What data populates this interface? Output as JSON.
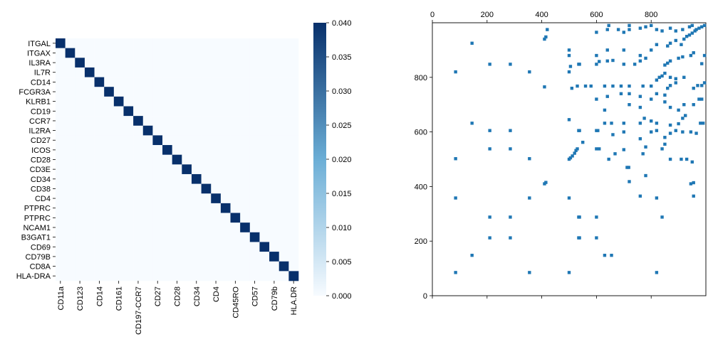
{
  "colors": {
    "heat_low": "#f7fbff",
    "heat_mid": "#6baed6",
    "heat_high": "#08306b",
    "spy_marker": "#1f77b4",
    "axis": "#000000"
  },
  "chart_data": [
    {
      "type": "heatmap",
      "title": "",
      "xlabel": "",
      "ylabel": "",
      "row_labels": [
        "ITGAL",
        "ITGAX",
        "IL3RA",
        "IL7R",
        "CD14",
        "FCGR3A",
        "KLRB1",
        "CD19",
        "CCR7",
        "IL2RA",
        "CD27",
        "ICOS",
        "CD28",
        "CD3E",
        "CD34",
        "CD38",
        "CD4",
        "PTPRC",
        "PTPRC",
        "NCAM1",
        "B3GAT1",
        "CD69",
        "CD79B",
        "CD8A",
        "HLA-DRA"
      ],
      "col_labels": [
        "CD11a",
        "",
        "CD123",
        "",
        "CD14",
        "",
        "CD161",
        "",
        "CD197-CCR7",
        "",
        "CD27",
        "",
        "CD28",
        "",
        "CD34",
        "",
        "CD4",
        "",
        "CD45RO",
        "",
        "CD57",
        "",
        "CD79b",
        "",
        "HLA.DR"
      ],
      "matrix_rule": "identity",
      "diagonal_value": 0.04,
      "off_diagonal_value": 0.0,
      "colorbar": {
        "vmin": 0.0,
        "vmax": 0.04,
        "ticks": [
          "0.000",
          "0.005",
          "0.010",
          "0.015",
          "0.020",
          "0.025",
          "0.030",
          "0.035",
          "0.040"
        ]
      }
    },
    {
      "type": "scatter",
      "title": "",
      "xlabel": "",
      "ylabel": "",
      "xlim": [
        0,
        1000
      ],
      "ylim": [
        1000,
        0
      ],
      "x_ticks": [
        "0",
        "200",
        "400",
        "600",
        "800"
      ],
      "y_ticks": [
        "0",
        "200",
        "400",
        "600",
        "800"
      ],
      "x_axis_position": "top",
      "points": [
        [
          85,
          85
        ],
        [
          355,
          85
        ],
        [
          500,
          85
        ],
        [
          820,
          85
        ],
        [
          145,
          148
        ],
        [
          630,
          148
        ],
        [
          655,
          148
        ],
        [
          210,
          212
        ],
        [
          285,
          212
        ],
        [
          535,
          212
        ],
        [
          538,
          212
        ],
        [
          600,
          212
        ],
        [
          210,
          288
        ],
        [
          285,
          288
        ],
        [
          535,
          288
        ],
        [
          538,
          288
        ],
        [
          600,
          288
        ],
        [
          840,
          288
        ],
        [
          85,
          358
        ],
        [
          355,
          358
        ],
        [
          500,
          358
        ],
        [
          760,
          365
        ],
        [
          820,
          358
        ],
        [
          955,
          365
        ],
        [
          410,
          410
        ],
        [
          415,
          415
        ],
        [
          945,
          410
        ],
        [
          955,
          414
        ],
        [
          720,
          418
        ],
        [
          780,
          440
        ],
        [
          950,
          490
        ],
        [
          712,
          470
        ],
        [
          718,
          470
        ],
        [
          85,
          502
        ],
        [
          355,
          502
        ],
        [
          500,
          500
        ],
        [
          505,
          505
        ],
        [
          512,
          512
        ],
        [
          520,
          522
        ],
        [
          525,
          532
        ],
        [
          530,
          538
        ],
        [
          210,
          538
        ],
        [
          285,
          538
        ],
        [
          600,
          538
        ],
        [
          610,
          538
        ],
        [
          645,
          500
        ],
        [
          668,
          520
        ],
        [
          700,
          535
        ],
        [
          770,
          520
        ],
        [
          780,
          545
        ],
        [
          840,
          538
        ],
        [
          850,
          555
        ],
        [
          870,
          500
        ],
        [
          910,
          500
        ],
        [
          930,
          500
        ],
        [
          210,
          605
        ],
        [
          285,
          605
        ],
        [
          535,
          605
        ],
        [
          538,
          605
        ],
        [
          600,
          605
        ],
        [
          605,
          605
        ],
        [
          550,
          562
        ],
        [
          660,
          590
        ],
        [
          700,
          600
        ],
        [
          760,
          575
        ],
        [
          800,
          600
        ],
        [
          820,
          605
        ],
        [
          850,
          580
        ],
        [
          870,
          595
        ],
        [
          890,
          605
        ],
        [
          915,
          600
        ],
        [
          945,
          600
        ],
        [
          965,
          595
        ],
        [
          980,
          632
        ],
        [
          990,
          632
        ],
        [
          145,
          632
        ],
        [
          500,
          645
        ],
        [
          630,
          632
        ],
        [
          655,
          632
        ],
        [
          700,
          632
        ],
        [
          760,
          632
        ],
        [
          775,
          650
        ],
        [
          800,
          640
        ],
        [
          820,
          632
        ],
        [
          870,
          625
        ],
        [
          900,
          630
        ],
        [
          915,
          650
        ],
        [
          925,
          660
        ],
        [
          630,
          680
        ],
        [
          720,
          700
        ],
        [
          760,
          690
        ],
        [
          800,
          720
        ],
        [
          850,
          710
        ],
        [
          870,
          690
        ],
        [
          900,
          680
        ],
        [
          920,
          700
        ],
        [
          955,
          700
        ],
        [
          975,
          720
        ],
        [
          985,
          720
        ],
        [
          600,
          720
        ],
        [
          640,
          730
        ],
        [
          690,
          740
        ],
        [
          720,
          740
        ],
        [
          760,
          730
        ],
        [
          820,
          740
        ],
        [
          850,
          735
        ],
        [
          860,
          760
        ],
        [
          870,
          770
        ],
        [
          890,
          780
        ],
        [
          955,
          760
        ],
        [
          970,
          770
        ],
        [
          985,
          770
        ],
        [
          995,
          780
        ],
        [
          410,
          765
        ],
        [
          510,
          760
        ],
        [
          530,
          768
        ],
        [
          560,
          768
        ],
        [
          580,
          768
        ],
        [
          630,
          768
        ],
        [
          660,
          768
        ],
        [
          690,
          768
        ],
        [
          720,
          768
        ],
        [
          770,
          768
        ],
        [
          800,
          768
        ],
        [
          820,
          790
        ],
        [
          830,
          800
        ],
        [
          840,
          805
        ],
        [
          850,
          815
        ],
        [
          870,
          800
        ],
        [
          890,
          795
        ],
        [
          920,
          800
        ],
        [
          85,
          820
        ],
        [
          355,
          820
        ],
        [
          500,
          820
        ],
        [
          505,
          840
        ],
        [
          535,
          848
        ],
        [
          538,
          848
        ],
        [
          600,
          848
        ],
        [
          610,
          858
        ],
        [
          640,
          860
        ],
        [
          660,
          862
        ],
        [
          700,
          848
        ],
        [
          740,
          848
        ],
        [
          760,
          860
        ],
        [
          780,
          870
        ],
        [
          850,
          845
        ],
        [
          860,
          852
        ],
        [
          870,
          860
        ],
        [
          900,
          870
        ],
        [
          915,
          875
        ],
        [
          945,
          880
        ],
        [
          955,
          890
        ],
        [
          985,
          850
        ],
        [
          995,
          880
        ],
        [
          210,
          848
        ],
        [
          285,
          848
        ],
        [
          500,
          880
        ],
        [
          500,
          900
        ],
        [
          600,
          880
        ],
        [
          640,
          900
        ],
        [
          700,
          900
        ],
        [
          760,
          880
        ],
        [
          800,
          900
        ],
        [
          820,
          920
        ],
        [
          860,
          915
        ],
        [
          870,
          925
        ],
        [
          890,
          935
        ],
        [
          910,
          920
        ],
        [
          920,
          940
        ],
        [
          930,
          950
        ],
        [
          940,
          955
        ],
        [
          950,
          962
        ],
        [
          960,
          970
        ],
        [
          975,
          980
        ],
        [
          985,
          985
        ],
        [
          995,
          990
        ],
        [
          145,
          925
        ],
        [
          410,
          940
        ],
        [
          415,
          948
        ],
        [
          420,
          975
        ],
        [
          600,
          965
        ],
        [
          640,
          975
        ],
        [
          645,
          990
        ],
        [
          680,
          975
        ],
        [
          700,
          965
        ],
        [
          720,
          975
        ],
        [
          720,
          990
        ],
        [
          760,
          980
        ],
        [
          780,
          985
        ],
        [
          800,
          990
        ],
        [
          820,
          975
        ],
        [
          840,
          970
        ],
        [
          870,
          980
        ],
        [
          890,
          970
        ],
        [
          915,
          975
        ],
        [
          940,
          985
        ],
        [
          950,
          990
        ],
        [
          965,
          975
        ]
      ]
    }
  ]
}
